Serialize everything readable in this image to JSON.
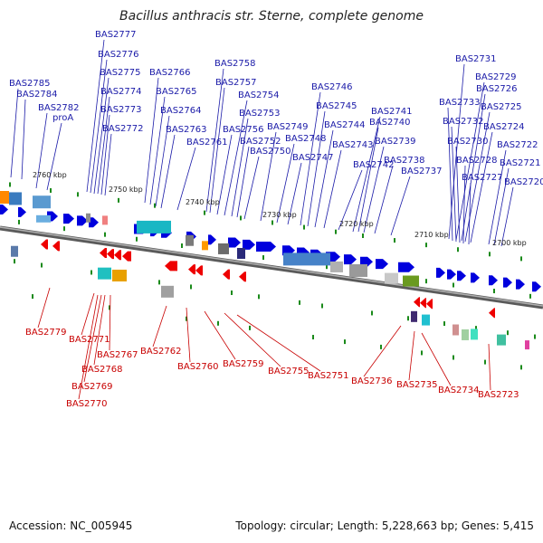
{
  "title": "Bacillus anthracis str. Sterne, complete genome",
  "footer": {
    "accession": "Accession: NC_005945",
    "summary": "Topology: circular; Length: 5,228,663 bp; Genes: 5,415"
  },
  "colors": {
    "forward": "#0000dd",
    "reverse": "#ee0000",
    "backbone": "#808080",
    "marker": "#1a8a1a",
    "label_forward": "#1a1aa8",
    "label_reverse": "#c80000"
  },
  "scale_ticks": [
    "2760 kbp",
    "2750 kbp",
    "2740 kbp",
    "2730 kbp",
    "2720 kbp",
    "2710 kbp",
    "2700 kbp"
  ],
  "forward_genes": [
    "BAS2785",
    "BAS2784",
    "BAS2782",
    "proA",
    "BAS2777",
    "BAS2776",
    "BAS2775",
    "BAS2774",
    "BAS2773",
    "BAS2772",
    "BAS2766",
    "BAS2765",
    "BAS2764",
    "BAS2763",
    "BAS2761",
    "BAS2758",
    "BAS2757",
    "BAS2756",
    "BAS2754",
    "BAS2753",
    "BAS2752",
    "BAS2750",
    "BAS2749",
    "BAS2748",
    "BAS2747",
    "BAS2746",
    "BAS2745",
    "BAS2744",
    "BAS2743",
    "BAS2742",
    "BAS2741",
    "BAS2740",
    "BAS2739",
    "BAS2738",
    "BAS2737",
    "BAS2731",
    "BAS2729",
    "BAS2726",
    "BAS2733",
    "BAS2725",
    "BAS2732",
    "BAS2724",
    "BAS2730",
    "BAS2722",
    "BAS2728",
    "BAS2721",
    "BAS2727",
    "BAS2720"
  ],
  "reverse_genes": [
    "BAS2779",
    "BAS2771",
    "BAS2767",
    "BAS2768",
    "BAS2769",
    "BAS2770",
    "BAS2762",
    "BAS2760",
    "BAS2759",
    "BAS2755",
    "BAS2751",
    "BAS2736",
    "BAS2735",
    "BAS2734",
    "BAS2723"
  ]
}
